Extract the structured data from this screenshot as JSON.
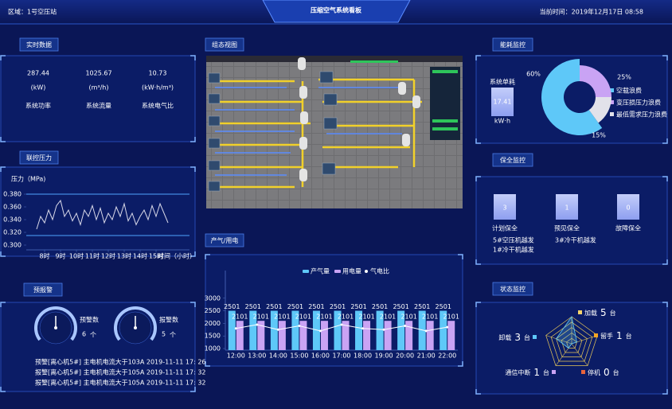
{
  "header": {
    "region": "区域：1号空压站",
    "title": "压缩空气系统看板",
    "time": "当前时间：2019年12月17日 08:58"
  },
  "realtime": {
    "title": "实时数据",
    "items": [
      {
        "value": 287.44,
        "unit": "(kW)",
        "label": "系统功率"
      },
      {
        "value": 1025.67,
        "unit": "(m³/h)",
        "label": "系统流量"
      },
      {
        "value": 10.73,
        "unit": "(kW·h/m³)",
        "label": "系统电气比"
      }
    ]
  },
  "pressure": {
    "title": "联控压力"
  },
  "alarm": {
    "title": "预报警",
    "gauges": [
      {
        "label": "预警数",
        "value": 6,
        "unit": "个"
      },
      {
        "label": "报警数",
        "value": 5,
        "unit": "个"
      }
    ],
    "messages": [
      {
        "text": "预警[离心机5#] 主电机电流大于103A 2019-11-11 17: 26",
        "color": "#ffffff"
      },
      {
        "text": "报警[离心机5#] 主电机电流大于105A 2019-11-11 17: 32",
        "color": "#ff4d4d"
      },
      {
        "text": "报警[离心机5#] 主电机电流大于105A 2019-11-11 17: 32",
        "color": "#ff4d4d"
      }
    ]
  },
  "scada": {
    "title": "组态视图"
  },
  "production": {
    "title": "产气/用电"
  },
  "energy": {
    "title": "能耗监控",
    "unit_label": "系统单耗",
    "unit_value": 17.41,
    "unit": "kW·h"
  },
  "maintenance": {
    "title": "保全监控",
    "items": [
      {
        "value": 3,
        "label": "计划保全",
        "notes": [
          "5#空压机越发",
          "1#冷干机越发"
        ]
      },
      {
        "value": 1,
        "label": "预见保全",
        "notes": [
          "3#冷干机越发"
        ]
      },
      {
        "value": 0,
        "label": "故障保全"
      }
    ]
  },
  "status": {
    "title": "状态监控"
  },
  "chart_data": [
    {
      "type": "line",
      "y_label": "压力（MPa)",
      "x_label": "时间（小时）",
      "color": "#d8d8e8",
      "x": [
        7.5,
        7.75,
        8,
        8.25,
        8.5,
        8.75,
        9,
        9.25,
        9.5,
        9.75,
        10,
        10.25,
        10.5,
        10.75,
        11,
        11.25,
        11.5,
        11.75,
        12,
        12.25,
        12.5,
        12.75,
        13,
        13.25,
        13.5,
        13.75,
        14,
        14.25,
        14.5,
        14.75,
        15,
        15.25,
        15.5,
        15.75
      ],
      "values": [
        0.325,
        0.345,
        0.335,
        0.355,
        0.34,
        0.362,
        0.37,
        0.345,
        0.355,
        0.338,
        0.35,
        0.332,
        0.355,
        0.345,
        0.362,
        0.34,
        0.358,
        0.335,
        0.35,
        0.34,
        0.36,
        0.345,
        0.365,
        0.338,
        0.35,
        0.332,
        0.345,
        0.355,
        0.34,
        0.362,
        0.345,
        0.365,
        0.35,
        0.335
      ],
      "reference_lines": [
        0.38,
        0.315
      ],
      "reference_color": "#4fa3ff",
      "xlim": [
        7.2,
        16.6
      ],
      "xticks": [
        {
          "value": 8,
          "label": "8时"
        },
        {
          "value": 9,
          "label": "9时"
        },
        {
          "value": 10,
          "label": "10时"
        },
        {
          "value": 11,
          "label": "11时"
        },
        {
          "value": 12,
          "label": "12时"
        },
        {
          "value": 13,
          "label": "13时"
        },
        {
          "value": 14,
          "label": "14时"
        },
        {
          "value": 15,
          "label": "15时"
        }
      ],
      "ylim": [
        0.295,
        0.385
      ],
      "yticks": [
        {
          "value": 0.3,
          "label": "0.300"
        },
        {
          "value": 0.32,
          "label": "0.320"
        },
        {
          "value": 0.34,
          "label": "0.340"
        },
        {
          "value": 0.36,
          "label": "0.360"
        },
        {
          "value": 0.38,
          "label": "0.380"
        }
      ]
    },
    {
      "type": "bar",
      "categories": [
        "12:00",
        "13:00",
        "14:00",
        "15:00",
        "16:00",
        "17:00",
        "18:00",
        "19:00",
        "20:00",
        "21:00",
        "22:00"
      ],
      "series": [
        {
          "name": "产气量",
          "color": "#5ec8f8",
          "values": [
            2501,
            2501,
            2501,
            2501,
            2501,
            2501,
            2501,
            2501,
            2501,
            2501,
            2501
          ]
        },
        {
          "name": "用电量",
          "color": "#c9a3f4",
          "values": [
            2101,
            2101,
            2101,
            2101,
            2101,
            2101,
            2101,
            2101,
            2101,
            2101,
            2101
          ]
        },
        {
          "name": "气电比",
          "type": "line",
          "color": "#ffffff",
          "values": [
            1800,
            1950,
            1750,
            1900,
            1700,
            1950,
            1800,
            1750,
            1900,
            1700,
            1850
          ]
        }
      ],
      "ylim": [
        1000,
        4100
      ],
      "yticks": [
        1000,
        1500,
        2000,
        2500,
        3000
      ]
    },
    {
      "type": "pie",
      "categories": [
        "空载浪费",
        "变压损压力浪费",
        "最低需求压力浪费"
      ],
      "values": [
        60,
        25,
        15
      ],
      "value_labels": [
        "60%",
        "25%",
        "15%"
      ],
      "colors": [
        "#5ec8f8",
        "#c9a3f4",
        "#e2e2ea"
      ]
    },
    {
      "type": "radar",
      "categories": [
        "加载",
        "留手",
        "停机",
        "通信中断",
        "卸载"
      ],
      "values": [
        5,
        1,
        0,
        1,
        3
      ],
      "unit": "台",
      "rlim": [
        0,
        5
      ],
      "colors": [
        "#f5d36b",
        "#f5a623",
        "#e8643c",
        "#c9a3f4",
        "#5ec8f8"
      ],
      "line_color": "#e8c85a"
    }
  ]
}
